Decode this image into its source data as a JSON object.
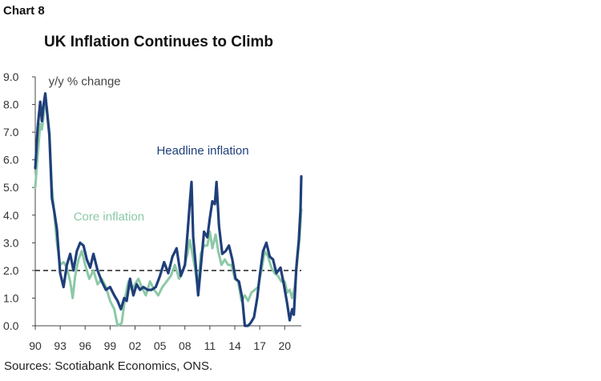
{
  "header": {
    "chart_number": "Chart 8",
    "title": "UK Inflation Continues to Climb"
  },
  "footer": {
    "source": "Sources: Scotiabank Economics, ONS."
  },
  "colors": {
    "headline": "#1f3f7a",
    "core": "#8cc9a6",
    "target_line": "#333333",
    "axis": "#444444"
  },
  "chart_data": {
    "type": "line",
    "title": "UK Inflation Continues to Climb",
    "ylabel": "y/y % change",
    "xlabel": "",
    "ylim": [
      0,
      9
    ],
    "yticks": [
      "0.0",
      "1.0",
      "2.0",
      "3.0",
      "4.0",
      "5.0",
      "6.0",
      "7.0",
      "8.0",
      "9.0"
    ],
    "xlim": [
      1990,
      2022
    ],
    "xticks": [
      {
        "year": 1990,
        "label": "90"
      },
      {
        "year": 1993,
        "label": "93"
      },
      {
        "year": 1996,
        "label": "96"
      },
      {
        "year": 1999,
        "label": "99"
      },
      {
        "year": 2002,
        "label": "02"
      },
      {
        "year": 2005,
        "label": "05"
      },
      {
        "year": 2008,
        "label": "08"
      },
      {
        "year": 2011,
        "label": "11"
      },
      {
        "year": 2014,
        "label": "14"
      },
      {
        "year": 2017,
        "label": "17"
      },
      {
        "year": 2020,
        "label": "20"
      }
    ],
    "reference_line": {
      "y": 2.0,
      "style": "dashed"
    },
    "grid": false,
    "series": [
      {
        "name": "Headline inflation",
        "color": "#1f3f7a",
        "points": [
          [
            1990.0,
            5.7
          ],
          [
            1990.3,
            7.2
          ],
          [
            1990.6,
            8.1
          ],
          [
            1990.8,
            7.4
          ],
          [
            1991.0,
            8.0
          ],
          [
            1991.2,
            8.4
          ],
          [
            1991.4,
            7.8
          ],
          [
            1991.7,
            6.9
          ],
          [
            1992.0,
            4.6
          ],
          [
            1992.3,
            4.1
          ],
          [
            1992.6,
            3.5
          ],
          [
            1993.0,
            1.9
          ],
          [
            1993.4,
            1.4
          ],
          [
            1993.8,
            2.2
          ],
          [
            1994.2,
            2.6
          ],
          [
            1994.6,
            2.0
          ],
          [
            1995.0,
            2.7
          ],
          [
            1995.4,
            3.0
          ],
          [
            1995.8,
            2.9
          ],
          [
            1996.2,
            2.4
          ],
          [
            1996.6,
            2.1
          ],
          [
            1997.0,
            2.6
          ],
          [
            1997.5,
            2.0
          ],
          [
            1998.0,
            1.6
          ],
          [
            1998.5,
            1.3
          ],
          [
            1999.0,
            1.4
          ],
          [
            1999.5,
            1.1
          ],
          [
            1999.9,
            0.9
          ],
          [
            2000.3,
            0.6
          ],
          [
            2000.7,
            1.0
          ],
          [
            2001.0,
            0.9
          ],
          [
            2001.4,
            1.7
          ],
          [
            2001.8,
            1.1
          ],
          [
            2002.2,
            1.5
          ],
          [
            2002.6,
            1.3
          ],
          [
            2003.0,
            1.4
          ],
          [
            2003.5,
            1.3
          ],
          [
            2004.0,
            1.3
          ],
          [
            2004.5,
            1.4
          ],
          [
            2005.0,
            1.8
          ],
          [
            2005.5,
            2.3
          ],
          [
            2006.0,
            1.9
          ],
          [
            2006.5,
            2.5
          ],
          [
            2007.0,
            2.8
          ],
          [
            2007.5,
            1.8
          ],
          [
            2008.0,
            2.2
          ],
          [
            2008.3,
            3.3
          ],
          [
            2008.6,
            4.5
          ],
          [
            2008.8,
            5.2
          ],
          [
            2009.0,
            3.2
          ],
          [
            2009.3,
            2.2
          ],
          [
            2009.6,
            1.1
          ],
          [
            2009.9,
            2.1
          ],
          [
            2010.3,
            3.4
          ],
          [
            2010.7,
            3.2
          ],
          [
            2011.0,
            3.9
          ],
          [
            2011.3,
            4.5
          ],
          [
            2011.6,
            4.4
          ],
          [
            2011.8,
            5.2
          ],
          [
            2012.1,
            3.6
          ],
          [
            2012.5,
            2.6
          ],
          [
            2012.9,
            2.7
          ],
          [
            2013.3,
            2.9
          ],
          [
            2013.7,
            2.4
          ],
          [
            2014.1,
            1.7
          ],
          [
            2014.5,
            1.6
          ],
          [
            2014.9,
            1.0
          ],
          [
            2015.2,
            0.0
          ],
          [
            2015.6,
            0.0
          ],
          [
            2015.9,
            0.1
          ],
          [
            2016.3,
            0.3
          ],
          [
            2016.7,
            1.0
          ],
          [
            2017.0,
            1.8
          ],
          [
            2017.4,
            2.7
          ],
          [
            2017.8,
            3.0
          ],
          [
            2018.2,
            2.5
          ],
          [
            2018.6,
            2.4
          ],
          [
            2019.0,
            1.9
          ],
          [
            2019.5,
            2.1
          ],
          [
            2019.9,
            1.5
          ],
          [
            2020.3,
            0.8
          ],
          [
            2020.6,
            0.2
          ],
          [
            2020.9,
            0.6
          ],
          [
            2021.1,
            0.4
          ],
          [
            2021.4,
            2.1
          ],
          [
            2021.7,
            3.1
          ],
          [
            2021.9,
            4.2
          ],
          [
            2022.0,
            5.4
          ]
        ]
      },
      {
        "name": "Core inflation",
        "color": "#8cc9a6",
        "points": [
          [
            1990.0,
            5.0
          ],
          [
            1990.3,
            6.2
          ],
          [
            1990.6,
            7.3
          ],
          [
            1990.8,
            7.1
          ],
          [
            1991.0,
            7.6
          ],
          [
            1991.2,
            8.2
          ],
          [
            1991.4,
            7.9
          ],
          [
            1991.7,
            7.0
          ],
          [
            1992.0,
            5.0
          ],
          [
            1992.3,
            4.0
          ],
          [
            1992.6,
            3.0
          ],
          [
            1993.0,
            2.2
          ],
          [
            1993.4,
            2.3
          ],
          [
            1993.8,
            2.1
          ],
          [
            1994.2,
            1.6
          ],
          [
            1994.5,
            1.0
          ],
          [
            1994.8,
            1.8
          ],
          [
            1995.2,
            2.4
          ],
          [
            1995.6,
            2.7
          ],
          [
            1996.0,
            2.2
          ],
          [
            1996.5,
            1.7
          ],
          [
            1997.0,
            2.0
          ],
          [
            1997.5,
            1.5
          ],
          [
            1998.0,
            1.7
          ],
          [
            1998.5,
            1.4
          ],
          [
            1999.0,
            0.9
          ],
          [
            1999.5,
            0.6
          ],
          [
            1999.9,
            0.0
          ],
          [
            2000.4,
            0.1
          ],
          [
            2000.8,
            1.0
          ],
          [
            2001.2,
            1.6
          ],
          [
            2001.6,
            1.3
          ],
          [
            2002.0,
            1.5
          ],
          [
            2002.4,
            1.7
          ],
          [
            2002.8,
            1.4
          ],
          [
            2003.3,
            1.1
          ],
          [
            2003.8,
            1.6
          ],
          [
            2004.3,
            1.3
          ],
          [
            2004.8,
            1.1
          ],
          [
            2005.3,
            1.4
          ],
          [
            2005.8,
            1.6
          ],
          [
            2006.3,
            1.8
          ],
          [
            2006.8,
            2.2
          ],
          [
            2007.3,
            1.7
          ],
          [
            2007.8,
            2.0
          ],
          [
            2008.3,
            2.6
          ],
          [
            2008.6,
            3.1
          ],
          [
            2008.9,
            2.6
          ],
          [
            2009.2,
            2.1
          ],
          [
            2009.6,
            1.3
          ],
          [
            2009.9,
            2.6
          ],
          [
            2010.3,
            2.9
          ],
          [
            2010.7,
            2.9
          ],
          [
            2011.0,
            3.4
          ],
          [
            2011.3,
            2.8
          ],
          [
            2011.7,
            3.3
          ],
          [
            2012.0,
            2.7
          ],
          [
            2012.4,
            2.2
          ],
          [
            2012.8,
            2.4
          ],
          [
            2013.2,
            2.2
          ],
          [
            2013.6,
            2.2
          ],
          [
            2014.0,
            1.7
          ],
          [
            2014.4,
            1.6
          ],
          [
            2014.8,
            0.9
          ],
          [
            2015.2,
            1.1
          ],
          [
            2015.6,
            0.9
          ],
          [
            2016.0,
            1.2
          ],
          [
            2016.4,
            1.3
          ],
          [
            2016.8,
            1.4
          ],
          [
            2017.2,
            2.0
          ],
          [
            2017.6,
            2.7
          ],
          [
            2018.0,
            2.5
          ],
          [
            2018.4,
            2.1
          ],
          [
            2018.8,
            1.9
          ],
          [
            2019.2,
            1.8
          ],
          [
            2019.6,
            1.6
          ],
          [
            2020.0,
            1.6
          ],
          [
            2020.3,
            1.2
          ],
          [
            2020.6,
            1.3
          ],
          [
            2020.9,
            1.0
          ],
          [
            2021.2,
            1.4
          ],
          [
            2021.5,
            2.3
          ],
          [
            2021.8,
            3.2
          ],
          [
            2022.0,
            4.2
          ]
        ]
      }
    ],
    "annotations": [
      {
        "text": "y/y % change",
        "x": 1991.6,
        "y": 8.7,
        "color": "#444444"
      },
      {
        "text": "Headline inflation",
        "x": 2004.6,
        "y": 6.2,
        "color": "#1f3f7a"
      },
      {
        "text": "Core inflation",
        "x": 1994.6,
        "y": 3.8,
        "color": "#8cc9a6"
      }
    ]
  }
}
